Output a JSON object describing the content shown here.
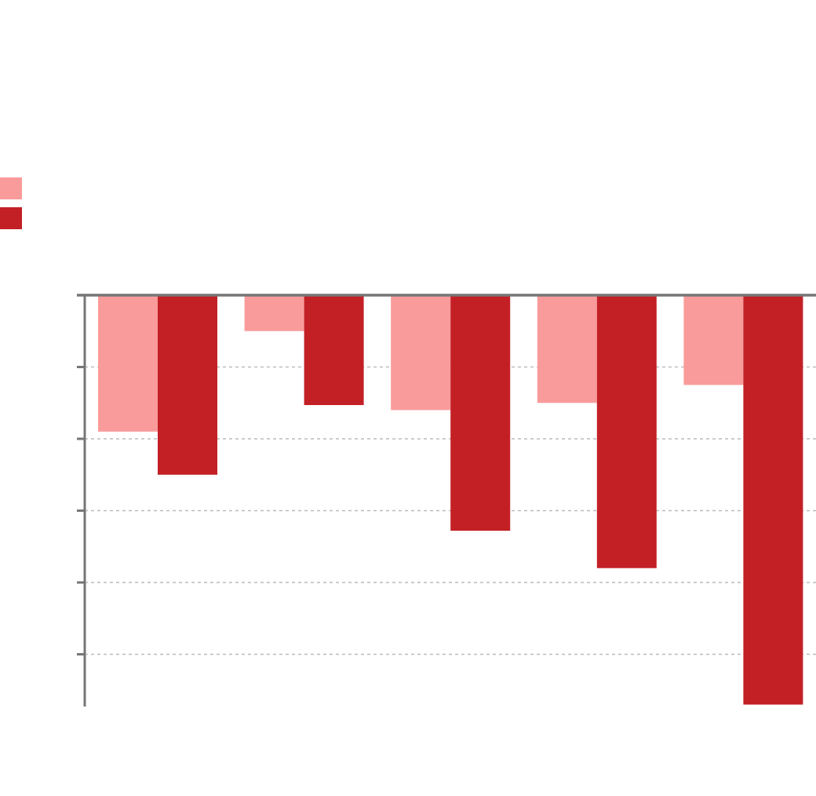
{
  "chart_data": {
    "type": "bar",
    "orientation": "vertical",
    "title": "",
    "xlabel": "",
    "ylabel": "",
    "categories": [
      "",
      "",
      "",
      "",
      ""
    ],
    "series": [
      {
        "color": "#f99b9b",
        "values": [
          -1.9,
          -0.5,
          -1.6,
          -1.5,
          -1.25
        ]
      },
      {
        "color": "#c32026",
        "values": [
          -2.5,
          -1.53,
          -3.28,
          -3.8,
          -5.7
        ]
      }
    ],
    "ylim": [
      -5.7,
      0
    ],
    "yticks": [
      0,
      -1,
      -2,
      -3,
      -4,
      -5
    ],
    "grid": true,
    "grid_style": "dashed",
    "legend_position": "top-left",
    "axis_color": "#767676",
    "grid_color": "#bbbbbb",
    "tick_labels_visible": false
  }
}
